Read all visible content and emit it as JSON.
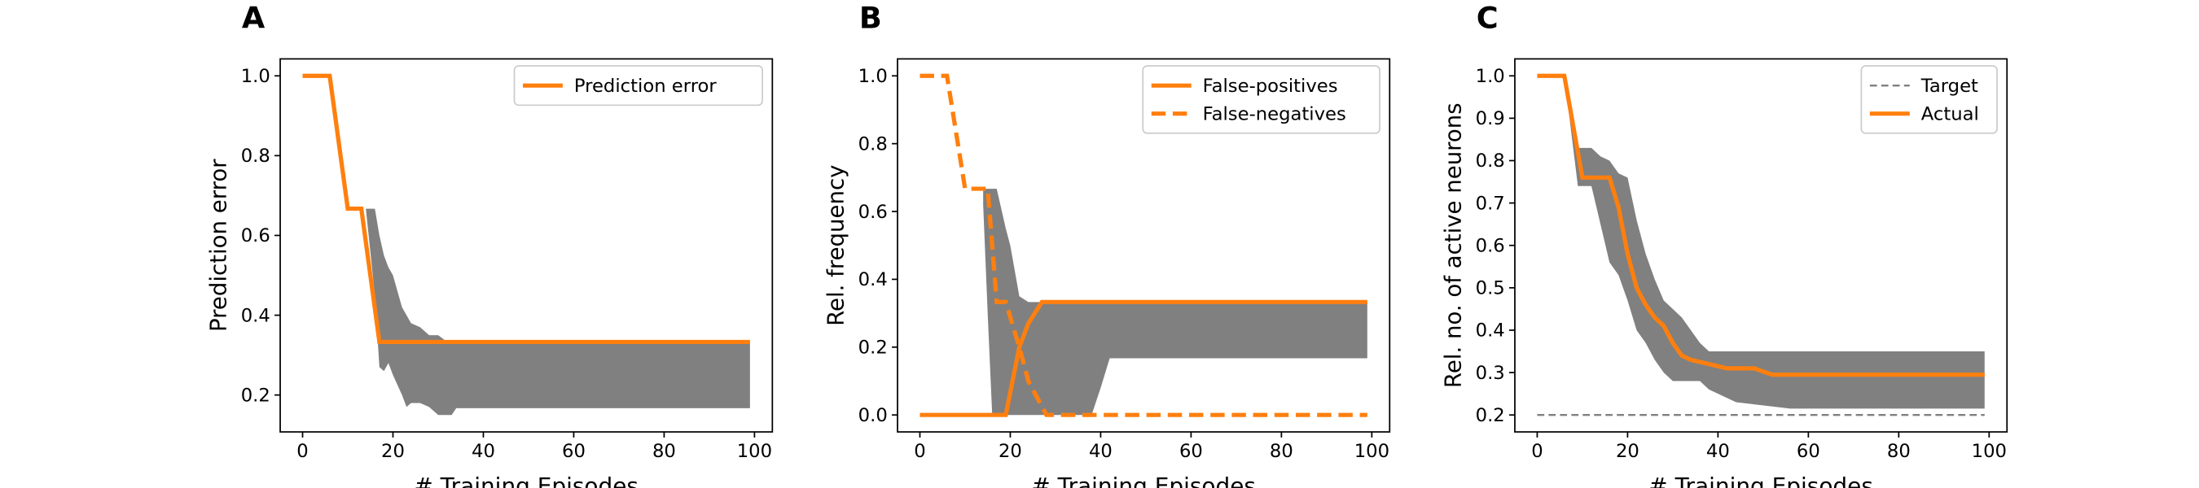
{
  "chart_data": [
    {
      "type": "line",
      "panel_label": "A",
      "xlabel": "# Training Episodes",
      "ylabel": "Prediction error",
      "xlim": [
        -4.95,
        103.95
      ],
      "ylim": [
        0.1075,
        1.0425
      ],
      "xticks": [
        0,
        20,
        40,
        60,
        80,
        100
      ],
      "yticks": [
        0.2,
        0.4,
        0.6,
        0.8,
        {
          "value": 1,
          "label": "1.0"
        }
      ],
      "legend": "upper right",
      "band": {
        "color": "#808080",
        "x": [
          14,
          16,
          17,
          18,
          19,
          20,
          22,
          23,
          24,
          26,
          28,
          30,
          32,
          33,
          34,
          99
        ],
        "upper": [
          0.667,
          0.667,
          0.6,
          0.55,
          0.52,
          0.5,
          0.42,
          0.4,
          0.38,
          0.37,
          0.35,
          0.35,
          0.333,
          0.333,
          0.333,
          0.333
        ],
        "lower": [
          0.667,
          0.45,
          0.27,
          0.26,
          0.28,
          0.25,
          0.2,
          0.17,
          0.18,
          0.18,
          0.17,
          0.15,
          0.15,
          0.15,
          0.167,
          0.167
        ]
      },
      "series": [
        {
          "name": "Prediction error",
          "color": "#ff7f0e",
          "linestyle": "solid",
          "x": [
            0,
            6,
            10,
            13,
            17,
            99
          ],
          "values": [
            1,
            1,
            0.667,
            0.667,
            0.333,
            0.333
          ]
        }
      ]
    },
    {
      "type": "line",
      "panel_label": "B",
      "xlabel": "# Training Episodes",
      "ylabel": "Rel. frequency",
      "xlim": [
        -4.95,
        103.95
      ],
      "ylim": [
        -0.05,
        1.05
      ],
      "xticks": [
        0,
        20,
        40,
        60,
        80,
        100
      ],
      "yticks": [
        {
          "value": 0,
          "label": "0.0"
        },
        0.2,
        0.4,
        0.6,
        0.8,
        {
          "value": 1,
          "label": "1.0"
        }
      ],
      "legend": "upper right",
      "band": {
        "color": "#808080",
        "x": [
          14,
          15,
          16,
          17,
          19,
          20,
          22,
          24,
          38,
          40,
          42,
          99
        ],
        "upper": [
          0.667,
          0.667,
          0.667,
          0.667,
          0.55,
          0.5,
          0.35,
          0.333,
          0.333,
          0.333,
          0.333,
          0.333
        ],
        "lower": [
          0.62,
          0.3,
          0,
          0,
          0,
          0,
          0,
          0,
          0,
          0.08,
          0.167,
          0.167
        ]
      },
      "series": [
        {
          "name": "False-positives",
          "color": "#ff7f0e",
          "linestyle": "solid",
          "x": [
            0,
            19,
            22,
            24,
            27,
            99
          ],
          "values": [
            0,
            0,
            0.2,
            0.27,
            0.333,
            0.333
          ]
        },
        {
          "name": "False-negatives",
          "color": "#ff7f0e",
          "linestyle": "dashed",
          "x": [
            0,
            6,
            10,
            15,
            17,
            19,
            22,
            24,
            28,
            99
          ],
          "values": [
            1,
            1,
            0.667,
            0.667,
            0.333,
            0.333,
            0.2,
            0.1,
            0,
            0
          ]
        }
      ]
    },
    {
      "type": "line",
      "panel_label": "C",
      "xlabel": "# Training Episodes",
      "ylabel": "Rel. no. of active neurons",
      "xlim": [
        -4.95,
        103.95
      ],
      "ylim": [
        0.16,
        1.04
      ],
      "xticks": [
        0,
        20,
        40,
        60,
        80,
        100
      ],
      "yticks": [
        0.2,
        0.3,
        0.4,
        0.5,
        0.6,
        0.7,
        0.8,
        0.9,
        {
          "value": 1,
          "label": "1.0"
        }
      ],
      "legend": "upper right",
      "band": {
        "color": "#808080",
        "x": [
          6,
          9,
          12,
          14,
          16,
          18,
          20,
          22,
          24,
          26,
          28,
          30,
          32,
          36,
          38,
          44,
          52,
          56,
          99
        ],
        "upper": [
          1,
          0.83,
          0.83,
          0.81,
          0.8,
          0.77,
          0.76,
          0.66,
          0.58,
          0.52,
          0.47,
          0.45,
          0.43,
          0.37,
          0.35,
          0.35,
          0.35,
          0.35,
          0.35
        ],
        "lower": [
          1,
          0.74,
          0.74,
          0.65,
          0.56,
          0.53,
          0.47,
          0.4,
          0.37,
          0.33,
          0.3,
          0.28,
          0.28,
          0.28,
          0.26,
          0.23,
          0.22,
          0.215,
          0.215
        ]
      },
      "series": [
        {
          "name": "Target",
          "color": "#808080",
          "linestyle": "thin-dashed",
          "x": [
            0,
            99
          ],
          "values": [
            0.2,
            0.2
          ]
        },
        {
          "name": "Actual",
          "color": "#ff7f0e",
          "linestyle": "solid",
          "x": [
            0,
            6,
            10,
            16,
            18,
            20,
            22,
            24,
            26,
            28,
            30,
            32,
            34,
            38,
            42,
            48,
            52,
            99
          ],
          "values": [
            1,
            1,
            0.76,
            0.76,
            0.69,
            0.58,
            0.5,
            0.46,
            0.43,
            0.41,
            0.37,
            0.34,
            0.33,
            0.32,
            0.31,
            0.31,
            0.295,
            0.295
          ]
        }
      ]
    }
  ]
}
